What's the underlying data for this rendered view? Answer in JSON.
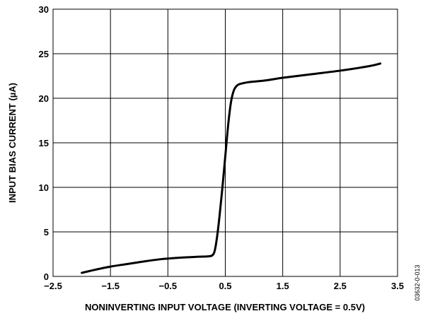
{
  "chart_data": {
    "type": "line",
    "title": "",
    "xlabel": "NONINVERTING INPUT VOLTAGE (INVERTING VOLTAGE = 0.5V)",
    "ylabel": "INPUT BIAS CURRENT (µA)",
    "xlim": [
      -2.5,
      3.5
    ],
    "ylim": [
      0,
      30
    ],
    "x_ticks": [
      "−2.5",
      "−1.5",
      "−0.5",
      "0.5",
      "1.5",
      "2.5",
      "3.5"
    ],
    "y_ticks": [
      "0",
      "5",
      "10",
      "15",
      "20",
      "25",
      "30"
    ],
    "grid": true,
    "line_color": "#000000",
    "series": [
      {
        "x": [
          -2.0,
          -1.8,
          -1.5,
          -1.2,
          -0.9,
          -0.6,
          -0.3,
          0.0,
          0.2,
          0.28,
          0.32,
          0.36,
          0.4,
          0.45,
          0.5,
          0.55,
          0.6,
          0.65,
          0.7,
          0.75,
          0.82,
          0.9,
          1.2,
          1.5,
          2.0,
          2.5,
          3.0,
          3.2
        ],
        "y": [
          0.4,
          0.7,
          1.1,
          1.4,
          1.7,
          1.95,
          2.1,
          2.2,
          2.25,
          2.4,
          3.0,
          4.6,
          6.8,
          10.0,
          13.5,
          17.0,
          19.6,
          20.9,
          21.4,
          21.6,
          21.7,
          21.8,
          22.0,
          22.3,
          22.7,
          23.1,
          23.6,
          23.9
        ]
      }
    ]
  },
  "figure_id": "03632-0-013"
}
